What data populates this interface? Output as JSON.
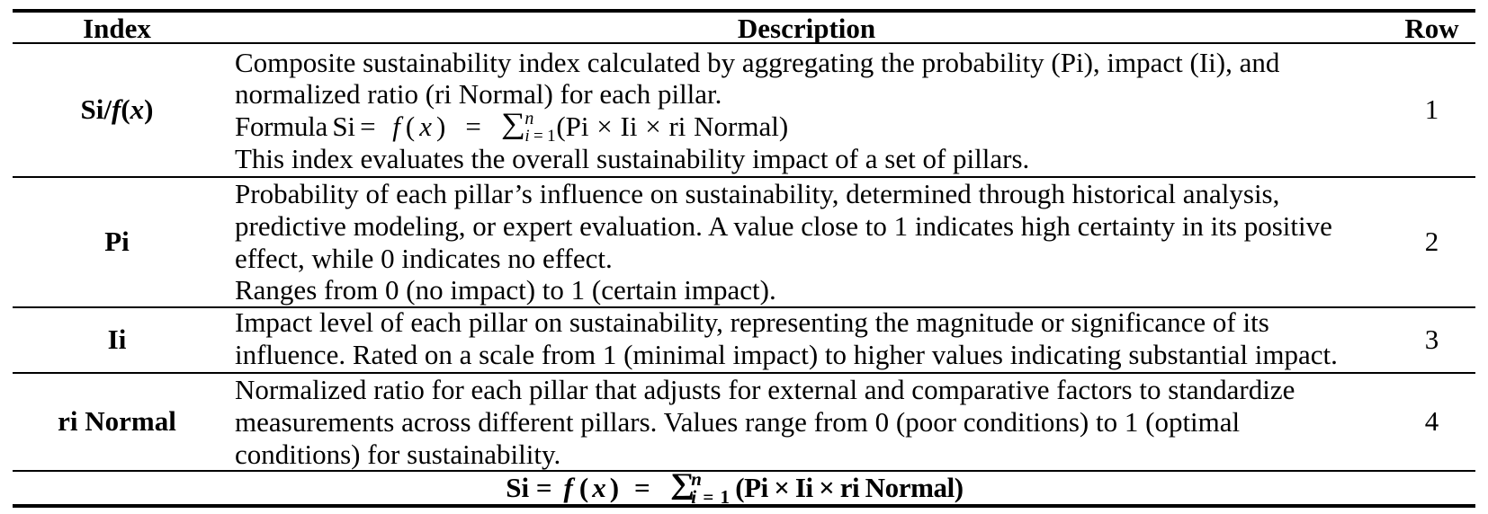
{
  "table": {
    "headers": {
      "index": "Index",
      "description": "Description",
      "row": "Row"
    },
    "rows": [
      {
        "row_num": "1",
        "index_label": {
          "pre": "Si/",
          "f": "f",
          "open": "(",
          "x": "x",
          "close": ")"
        },
        "desc": {
          "lines_before": "Composite sustainability index calculated by aggregating the probability (Pi), impact (Ii), and\nnormalized ratio (ri Normal) for each pillar.",
          "formula": {
            "prefix": "Formula Si =",
            "f": "f",
            "open": "(",
            "x": "x",
            "close": ")",
            "equals": "=",
            "sigma": "∑",
            "sup": "n",
            "sub_i": "i",
            "sub_rest": " = 1",
            "tail": "(Pi × Ii × ri Normal)"
          },
          "lines_after": "This index evaluates the overall sustainability impact of a set of pillars."
        }
      },
      {
        "row_num": "2",
        "index_label": "Pi",
        "desc_text": "Probability of each pillar’s influence on sustainability, determined through historical analysis,\npredictive modeling, or expert evaluation. A value close to 1 indicates high certainty in its positive\neffect, while 0 indicates no effect.\nRanges from 0 (no impact) to 1 (certain impact)."
      },
      {
        "row_num": "3",
        "index_label": "Ii",
        "desc_text": "Impact level of each pillar on sustainability, representing the magnitude or significance of its\ninfluence. Rated on a scale from 1 (minimal impact) to higher values indicating substantial impact."
      },
      {
        "row_num": "4",
        "index_label": "ri Normal",
        "desc_text": "Normalized ratio for each pillar that adjusts for external and comparative factors to standardize\nmeasurements across different pillars. Values range from 0 (poor conditions) to 1 (optimal\nconditions) for sustainability."
      }
    ],
    "footer_formula": {
      "prefix": "Si =",
      "f": "f",
      "open": "(",
      "x": "x",
      "close": ")",
      "equals": "=",
      "sigma": "∑",
      "sup": "n",
      "sub_i": "i",
      "sub_rest": " = 1",
      "tail": "(Pi × Ii × ri Normal)"
    }
  }
}
